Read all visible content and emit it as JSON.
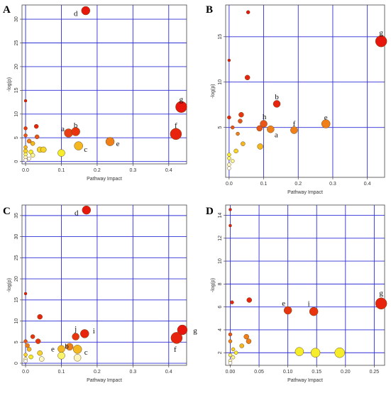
{
  "chart_data": [
    {
      "type": "scatter",
      "panel": "A",
      "xlabel": "Pathway Impact",
      "ylabel": "-log(p)",
      "xlim": [
        -0.01,
        0.45
      ],
      "ylim": [
        -0.5,
        33
      ],
      "xticks": [
        0,
        0.1,
        0.2,
        0.3,
        0.4
      ],
      "yticks": [
        0,
        5,
        10,
        15,
        20,
        25,
        30
      ],
      "xticklabels": [
        "0.0",
        "0.1",
        "0.2",
        "0.3",
        "0.4"
      ],
      "yticklabels": [
        "0",
        "5",
        "10",
        "15",
        "20",
        "25",
        "30"
      ],
      "grid": true,
      "points": [
        {
          "x": 0.168,
          "y": 31.8,
          "size": 6,
          "color": "#e8170d",
          "label": "d"
        },
        {
          "x": 0.435,
          "y": 11.5,
          "size": 8,
          "color": "#e8170d",
          "label": "g"
        },
        {
          "x": 0.42,
          "y": 5.8,
          "size": 8,
          "color": "#e8240f",
          "label": "f"
        },
        {
          "x": 0.12,
          "y": 6.0,
          "size": 6,
          "color": "#e83f14",
          "label": "a"
        },
        {
          "x": 0.14,
          "y": 6.3,
          "size": 6,
          "color": "#e8340f",
          "label": "b"
        },
        {
          "x": 0.236,
          "y": 4.2,
          "size": 6,
          "color": "#f07f1a",
          "label": "e"
        },
        {
          "x": 0.148,
          "y": 3.3,
          "size": 6,
          "color": "#f5b71e",
          "label": "c"
        },
        {
          "x": 0.1,
          "y": 1.8,
          "size": 5,
          "color": "#f6ed2a",
          "label": ""
        },
        {
          "x": 0.0,
          "y": 12.8,
          "size": 2,
          "color": "#e8170d",
          "label": ""
        },
        {
          "x": 0.0,
          "y": 7.0,
          "size": 2.5,
          "color": "#e8340f",
          "label": ""
        },
        {
          "x": 0.03,
          "y": 7.4,
          "size": 3,
          "color": "#e8240f",
          "label": ""
        },
        {
          "x": 0.0,
          "y": 5.5,
          "size": 2.5,
          "color": "#e8551a",
          "label": ""
        },
        {
          "x": 0.01,
          "y": 4.3,
          "size": 3,
          "color": "#f07f1a",
          "label": ""
        },
        {
          "x": 0.032,
          "y": 5.2,
          "size": 3,
          "color": "#e8551a",
          "label": ""
        },
        {
          "x": 0.02,
          "y": 3.8,
          "size": 3,
          "color": "#f5b71e",
          "label": ""
        },
        {
          "x": 0.04,
          "y": 2.5,
          "size": 4,
          "color": "#f6d42a",
          "label": ""
        },
        {
          "x": 0.05,
          "y": 2.5,
          "size": 4,
          "color": "#f6d42a",
          "label": ""
        },
        {
          "x": 0.0,
          "y": 3.0,
          "size": 2.5,
          "color": "#f5b71e",
          "label": ""
        },
        {
          "x": 0.0,
          "y": 2.2,
          "size": 3,
          "color": "#f6d42a",
          "label": ""
        },
        {
          "x": 0.015,
          "y": 2.0,
          "size": 3,
          "color": "#f6ed2a",
          "label": ""
        },
        {
          "x": 0.0,
          "y": 1.5,
          "size": 2.5,
          "color": "#f9f56a",
          "label": ""
        },
        {
          "x": 0.02,
          "y": 1.3,
          "size": 3,
          "color": "#faf69a",
          "label": ""
        },
        {
          "x": 0.0,
          "y": 0.9,
          "size": 2.5,
          "color": "#fbf8c8",
          "label": ""
        },
        {
          "x": 0.01,
          "y": 0.6,
          "size": 2.5,
          "color": "#ffffff",
          "label": ""
        },
        {
          "x": 0.0,
          "y": 0.3,
          "size": 2.5,
          "color": "#ffffff",
          "label": ""
        }
      ]
    },
    {
      "type": "scatter",
      "panel": "B",
      "xlabel": "Pathway Impact",
      "ylabel": "-log(p)",
      "xlim": [
        -0.01,
        0.45
      ],
      "ylim": [
        -0.5,
        18.5
      ],
      "xticks": [
        0,
        0.1,
        0.2,
        0.3,
        0.4
      ],
      "yticks": [
        5,
        10,
        15
      ],
      "xticklabels": [
        "0.0",
        "0.1",
        "0.2",
        "0.3",
        "0.4"
      ],
      "yticklabels": [
        "5",
        "10",
        "15"
      ],
      "grid": true,
      "points": [
        {
          "x": 0.44,
          "y": 14.5,
          "size": 8,
          "color": "#e8170d",
          "label": "g"
        },
        {
          "x": 0.055,
          "y": 17.7,
          "size": 2.5,
          "color": "#e8170d",
          "label": ""
        },
        {
          "x": 0.0,
          "y": 12.4,
          "size": 2,
          "color": "#e8170d",
          "label": ""
        },
        {
          "x": 0.053,
          "y": 10.5,
          "size": 3.5,
          "color": "#e8240f",
          "label": ""
        },
        {
          "x": 0.138,
          "y": 7.6,
          "size": 5,
          "color": "#e8240f",
          "label": "b"
        },
        {
          "x": 0.28,
          "y": 5.4,
          "size": 6,
          "color": "#f07f1a",
          "label": "e"
        },
        {
          "x": 0.188,
          "y": 4.7,
          "size": 5,
          "color": "#f07f1a",
          "label": "f"
        },
        {
          "x": 0.12,
          "y": 4.8,
          "size": 5,
          "color": "#f07f1a",
          "label": "a"
        },
        {
          "x": 0.1,
          "y": 5.4,
          "size": 5,
          "color": "#e8551a",
          "label": "h"
        },
        {
          "x": 0.088,
          "y": 4.9,
          "size": 4,
          "color": "#e8551a",
          "label": ""
        },
        {
          "x": 0.035,
          "y": 6.4,
          "size": 3.5,
          "color": "#e8340f",
          "label": ""
        },
        {
          "x": 0.032,
          "y": 5.7,
          "size": 3,
          "color": "#e8551a",
          "label": ""
        },
        {
          "x": 0.025,
          "y": 4.3,
          "size": 2.5,
          "color": "#f07f1a",
          "label": ""
        },
        {
          "x": 0.0,
          "y": 6.1,
          "size": 2.5,
          "color": "#e8240f",
          "label": ""
        },
        {
          "x": 0.01,
          "y": 5.0,
          "size": 2.5,
          "color": "#e8551a",
          "label": ""
        },
        {
          "x": 0.04,
          "y": 3.2,
          "size": 3,
          "color": "#f5b71e",
          "label": ""
        },
        {
          "x": 0.09,
          "y": 2.9,
          "size": 4,
          "color": "#f5b71e",
          "label": ""
        },
        {
          "x": 0.02,
          "y": 2.4,
          "size": 3,
          "color": "#f6d42a",
          "label": ""
        },
        {
          "x": 0.0,
          "y": 2.0,
          "size": 2.5,
          "color": "#f6ed2a",
          "label": ""
        },
        {
          "x": 0.0,
          "y": 1.6,
          "size": 2.5,
          "color": "#f9f56a",
          "label": ""
        },
        {
          "x": 0.01,
          "y": 1.3,
          "size": 2.5,
          "color": "#faf69a",
          "label": ""
        },
        {
          "x": 0.0,
          "y": 0.9,
          "size": 2.5,
          "color": "#fbf8c8",
          "label": ""
        },
        {
          "x": 0.0,
          "y": 0.5,
          "size": 2.5,
          "color": "#ffffff",
          "label": ""
        }
      ]
    },
    {
      "type": "scatter",
      "panel": "C",
      "xlabel": "Pathway Impact",
      "ylabel": "-log(p)",
      "xlim": [
        -0.01,
        0.45
      ],
      "ylim": [
        -0.5,
        37.5
      ],
      "xticks": [
        0,
        0.1,
        0.2,
        0.3,
        0.4
      ],
      "yticks": [
        0,
        5,
        10,
        15,
        20,
        25,
        30,
        35
      ],
      "xticklabels": [
        "0.0",
        "0.1",
        "0.2",
        "0.3",
        "0.4"
      ],
      "yticklabels": [
        "0",
        "5",
        "10",
        "15",
        "20",
        "25",
        "30",
        "35"
      ],
      "grid": true,
      "points": [
        {
          "x": 0.17,
          "y": 36.3,
          "size": 6,
          "color": "#e8170d",
          "label": "d"
        },
        {
          "x": 0.438,
          "y": 7.9,
          "size": 7,
          "color": "#e8170d",
          "label": "g"
        },
        {
          "x": 0.422,
          "y": 6.0,
          "size": 8,
          "color": "#e8240f",
          "label": "f"
        },
        {
          "x": 0.165,
          "y": 7.0,
          "size": 6,
          "color": "#e8240f",
          "label": "i"
        },
        {
          "x": 0.14,
          "y": 6.3,
          "size": 5,
          "color": "#e8340f",
          "label": "j"
        },
        {
          "x": 0.123,
          "y": 3.9,
          "size": 5,
          "color": "#f07f1a",
          "label": "b"
        },
        {
          "x": 0.1,
          "y": 3.4,
          "size": 5,
          "color": "#f5b71e",
          "label": "e"
        },
        {
          "x": 0.145,
          "y": 3.3,
          "size": 6,
          "color": "#f5b71e",
          "label": "c"
        },
        {
          "x": 0.145,
          "y": 1.3,
          "size": 5,
          "color": "#faf4c0",
          "label": ""
        },
        {
          "x": 0.1,
          "y": 1.8,
          "size": 5,
          "color": "#f9f56a",
          "label": ""
        },
        {
          "x": 0.0,
          "y": 16.5,
          "size": 2,
          "color": "#e8170d",
          "label": ""
        },
        {
          "x": 0.04,
          "y": 11.0,
          "size": 3.5,
          "color": "#e8240f",
          "label": ""
        },
        {
          "x": 0.02,
          "y": 6.3,
          "size": 3,
          "color": "#e8340f",
          "label": ""
        },
        {
          "x": 0.0,
          "y": 5.2,
          "size": 2.5,
          "color": "#e8551a",
          "label": ""
        },
        {
          "x": 0.035,
          "y": 5.2,
          "size": 3.5,
          "color": "#e8340f",
          "label": ""
        },
        {
          "x": 0.005,
          "y": 4.2,
          "size": 3,
          "color": "#f07f1a",
          "label": ""
        },
        {
          "x": 0.01,
          "y": 3.3,
          "size": 3,
          "color": "#f5b71e",
          "label": ""
        },
        {
          "x": 0.04,
          "y": 2.4,
          "size": 3.5,
          "color": "#f6d42a",
          "label": ""
        },
        {
          "x": 0.0,
          "y": 2.0,
          "size": 2.5,
          "color": "#f6d42a",
          "label": ""
        },
        {
          "x": 0.015,
          "y": 1.5,
          "size": 3,
          "color": "#f6ed2a",
          "label": ""
        },
        {
          "x": 0.045,
          "y": 1.0,
          "size": 3.5,
          "color": "#fbf8c8",
          "label": ""
        },
        {
          "x": 0.0,
          "y": 1.0,
          "size": 2.5,
          "color": "#fbf8c8",
          "label": ""
        },
        {
          "x": 0.0,
          "y": 0.5,
          "size": 2.5,
          "color": "#ffffff",
          "label": ""
        }
      ]
    },
    {
      "type": "scatter",
      "panel": "D",
      "xlabel": "Pathway Impact",
      "ylabel": "-log(p)",
      "xlim": [
        -0.008,
        0.268
      ],
      "ylim": [
        0.9,
        14.9
      ],
      "xticks": [
        0,
        0.05,
        0.1,
        0.15,
        0.2,
        0.25
      ],
      "yticks": [
        2,
        4,
        6,
        8,
        10,
        12,
        14
      ],
      "xticklabels": [
        "0.00",
        "0.05",
        "0.10",
        "0.15",
        "0.20",
        "0.25"
      ],
      "yticklabels": [
        "2",
        "4",
        "6",
        "8",
        "10",
        "12",
        "14"
      ],
      "grid": true,
      "points": [
        {
          "x": 0.0,
          "y": 14.5,
          "size": 2,
          "color": "#e8170d",
          "label": ""
        },
        {
          "x": 0.0,
          "y": 13.1,
          "size": 2,
          "color": "#e8170d",
          "label": ""
        },
        {
          "x": 0.262,
          "y": 6.3,
          "size": 8,
          "color": "#e8240f",
          "label": "g"
        },
        {
          "x": 0.145,
          "y": 5.6,
          "size": 6,
          "color": "#e8340f",
          "label": "i"
        },
        {
          "x": 0.1,
          "y": 5.7,
          "size": 5.5,
          "color": "#e8340f",
          "label": "e"
        },
        {
          "x": 0.033,
          "y": 6.6,
          "size": 3.5,
          "color": "#e8240f",
          "label": ""
        },
        {
          "x": 0.003,
          "y": 6.4,
          "size": 2.5,
          "color": "#e8240f",
          "label": ""
        },
        {
          "x": 0.028,
          "y": 3.4,
          "size": 3.5,
          "color": "#f07f1a",
          "label": ""
        },
        {
          "x": 0.032,
          "y": 3.0,
          "size": 3.5,
          "color": "#f07f1a",
          "label": ""
        },
        {
          "x": 0.02,
          "y": 2.6,
          "size": 3,
          "color": "#f5b71e",
          "label": ""
        },
        {
          "x": 0.0,
          "y": 3.6,
          "size": 2.5,
          "color": "#e8551a",
          "label": ""
        },
        {
          "x": 0.0,
          "y": 3.0,
          "size": 2.5,
          "color": "#f07f1a",
          "label": ""
        },
        {
          "x": 0.12,
          "y": 2.1,
          "size": 6,
          "color": "#f6ed2a",
          "label": ""
        },
        {
          "x": 0.148,
          "y": 2.0,
          "size": 6.5,
          "color": "#f6ed2a",
          "label": ""
        },
        {
          "x": 0.19,
          "y": 2.0,
          "size": 7,
          "color": "#f6ed2a",
          "label": ""
        },
        {
          "x": 0.005,
          "y": 2.3,
          "size": 2.5,
          "color": "#f6d42a",
          "label": ""
        },
        {
          "x": 0.01,
          "y": 2.0,
          "size": 2.5,
          "color": "#f6ed2a",
          "label": ""
        },
        {
          "x": 0.0,
          "y": 1.8,
          "size": 2.5,
          "color": "#f9f56a",
          "label": ""
        },
        {
          "x": 0.005,
          "y": 1.6,
          "size": 2.5,
          "color": "#faf69a",
          "label": ""
        },
        {
          "x": 0.0,
          "y": 1.3,
          "size": 2.5,
          "color": "#fbf8c8",
          "label": ""
        },
        {
          "x": 0.0,
          "y": 1.1,
          "size": 2.5,
          "color": "#ffffff",
          "label": ""
        }
      ]
    }
  ]
}
